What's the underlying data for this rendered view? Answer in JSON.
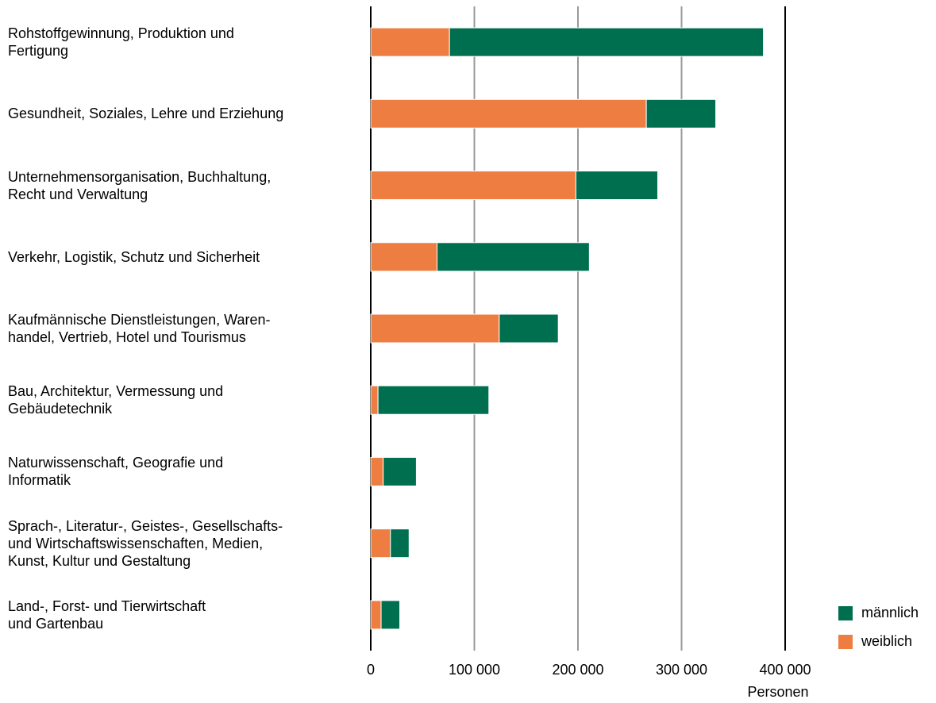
{
  "chart_data": {
    "type": "stacked-barh",
    "categories": [
      "Rohstoffgewinnung, Produktion und\nFertigung",
      "Gesundheit, Soziales, Lehre und Erziehung",
      "Unternehmensorganisation, Buchhaltung,\nRecht und Verwaltung",
      "Verkehr, Logistik, Schutz und Sicherheit",
      "Kaufmännische Dienstleistungen, Waren-\nhandel, Vertrieb, Hotel und Tourismus",
      "Bau, Architektur, Vermessung und\nGebäudetechnik",
      "Naturwissenschaft, Geografie und\nInformatik",
      "Sprach-, Literatur-, Geistes-, Gesellschafts-\nund Wirtschaftswissenschaften, Medien,\nKunst, Kultur und Gestaltung",
      "Land-, Forst- und Tierwirtschaft\nund Gartenbau"
    ],
    "series": [
      {
        "name": "männlich",
        "color": "#006f4f",
        "values": [
          303000,
          67000,
          79000,
          147000,
          57000,
          107000,
          32000,
          18000,
          18000
        ]
      },
      {
        "name": "weiblich",
        "color": "#ed7d40",
        "values": [
          76000,
          266000,
          198000,
          64000,
          124000,
          7000,
          12000,
          19000,
          10000
        ]
      }
    ],
    "xlim": [
      0,
      400000
    ],
    "xticks": [
      0,
      {
        "value": 100000,
        "label": "100 000"
      },
      {
        "value": 200000,
        "label": "200 000"
      },
      {
        "value": 300000,
        "label": "300 000"
      },
      {
        "value": 400000,
        "label": "400 000"
      }
    ],
    "xlabel": "Personen",
    "grid": true,
    "legend": "lower right"
  }
}
